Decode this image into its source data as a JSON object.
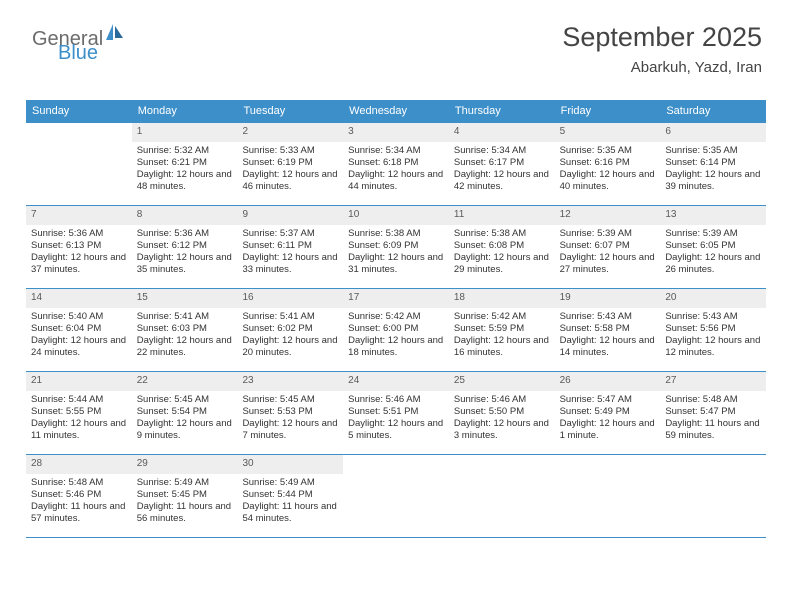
{
  "brand": {
    "part1": "General",
    "part2": "Blue"
  },
  "title": "September 2025",
  "location": "Abarkuh, Yazd, Iran",
  "colors": {
    "header_bg": "#3d8fc9",
    "header_fg": "#ffffff",
    "daynum_bg": "#eeeeee",
    "rule": "#3d8fc9",
    "text": "#333333"
  },
  "daysOfWeek": [
    "Sunday",
    "Monday",
    "Tuesday",
    "Wednesday",
    "Thursday",
    "Friday",
    "Saturday"
  ],
  "weeks": [
    [
      {
        "n": "",
        "sr": "",
        "ss": "",
        "dl": ""
      },
      {
        "n": "1",
        "sr": "Sunrise: 5:32 AM",
        "ss": "Sunset: 6:21 PM",
        "dl": "Daylight: 12 hours and 48 minutes."
      },
      {
        "n": "2",
        "sr": "Sunrise: 5:33 AM",
        "ss": "Sunset: 6:19 PM",
        "dl": "Daylight: 12 hours and 46 minutes."
      },
      {
        "n": "3",
        "sr": "Sunrise: 5:34 AM",
        "ss": "Sunset: 6:18 PM",
        "dl": "Daylight: 12 hours and 44 minutes."
      },
      {
        "n": "4",
        "sr": "Sunrise: 5:34 AM",
        "ss": "Sunset: 6:17 PM",
        "dl": "Daylight: 12 hours and 42 minutes."
      },
      {
        "n": "5",
        "sr": "Sunrise: 5:35 AM",
        "ss": "Sunset: 6:16 PM",
        "dl": "Daylight: 12 hours and 40 minutes."
      },
      {
        "n": "6",
        "sr": "Sunrise: 5:35 AM",
        "ss": "Sunset: 6:14 PM",
        "dl": "Daylight: 12 hours and 39 minutes."
      }
    ],
    [
      {
        "n": "7",
        "sr": "Sunrise: 5:36 AM",
        "ss": "Sunset: 6:13 PM",
        "dl": "Daylight: 12 hours and 37 minutes."
      },
      {
        "n": "8",
        "sr": "Sunrise: 5:36 AM",
        "ss": "Sunset: 6:12 PM",
        "dl": "Daylight: 12 hours and 35 minutes."
      },
      {
        "n": "9",
        "sr": "Sunrise: 5:37 AM",
        "ss": "Sunset: 6:11 PM",
        "dl": "Daylight: 12 hours and 33 minutes."
      },
      {
        "n": "10",
        "sr": "Sunrise: 5:38 AM",
        "ss": "Sunset: 6:09 PM",
        "dl": "Daylight: 12 hours and 31 minutes."
      },
      {
        "n": "11",
        "sr": "Sunrise: 5:38 AM",
        "ss": "Sunset: 6:08 PM",
        "dl": "Daylight: 12 hours and 29 minutes."
      },
      {
        "n": "12",
        "sr": "Sunrise: 5:39 AM",
        "ss": "Sunset: 6:07 PM",
        "dl": "Daylight: 12 hours and 27 minutes."
      },
      {
        "n": "13",
        "sr": "Sunrise: 5:39 AM",
        "ss": "Sunset: 6:05 PM",
        "dl": "Daylight: 12 hours and 26 minutes."
      }
    ],
    [
      {
        "n": "14",
        "sr": "Sunrise: 5:40 AM",
        "ss": "Sunset: 6:04 PM",
        "dl": "Daylight: 12 hours and 24 minutes."
      },
      {
        "n": "15",
        "sr": "Sunrise: 5:41 AM",
        "ss": "Sunset: 6:03 PM",
        "dl": "Daylight: 12 hours and 22 minutes."
      },
      {
        "n": "16",
        "sr": "Sunrise: 5:41 AM",
        "ss": "Sunset: 6:02 PM",
        "dl": "Daylight: 12 hours and 20 minutes."
      },
      {
        "n": "17",
        "sr": "Sunrise: 5:42 AM",
        "ss": "Sunset: 6:00 PM",
        "dl": "Daylight: 12 hours and 18 minutes."
      },
      {
        "n": "18",
        "sr": "Sunrise: 5:42 AM",
        "ss": "Sunset: 5:59 PM",
        "dl": "Daylight: 12 hours and 16 minutes."
      },
      {
        "n": "19",
        "sr": "Sunrise: 5:43 AM",
        "ss": "Sunset: 5:58 PM",
        "dl": "Daylight: 12 hours and 14 minutes."
      },
      {
        "n": "20",
        "sr": "Sunrise: 5:43 AM",
        "ss": "Sunset: 5:56 PM",
        "dl": "Daylight: 12 hours and 12 minutes."
      }
    ],
    [
      {
        "n": "21",
        "sr": "Sunrise: 5:44 AM",
        "ss": "Sunset: 5:55 PM",
        "dl": "Daylight: 12 hours and 11 minutes."
      },
      {
        "n": "22",
        "sr": "Sunrise: 5:45 AM",
        "ss": "Sunset: 5:54 PM",
        "dl": "Daylight: 12 hours and 9 minutes."
      },
      {
        "n": "23",
        "sr": "Sunrise: 5:45 AM",
        "ss": "Sunset: 5:53 PM",
        "dl": "Daylight: 12 hours and 7 minutes."
      },
      {
        "n": "24",
        "sr": "Sunrise: 5:46 AM",
        "ss": "Sunset: 5:51 PM",
        "dl": "Daylight: 12 hours and 5 minutes."
      },
      {
        "n": "25",
        "sr": "Sunrise: 5:46 AM",
        "ss": "Sunset: 5:50 PM",
        "dl": "Daylight: 12 hours and 3 minutes."
      },
      {
        "n": "26",
        "sr": "Sunrise: 5:47 AM",
        "ss": "Sunset: 5:49 PM",
        "dl": "Daylight: 12 hours and 1 minute."
      },
      {
        "n": "27",
        "sr": "Sunrise: 5:48 AM",
        "ss": "Sunset: 5:47 PM",
        "dl": "Daylight: 11 hours and 59 minutes."
      }
    ],
    [
      {
        "n": "28",
        "sr": "Sunrise: 5:48 AM",
        "ss": "Sunset: 5:46 PM",
        "dl": "Daylight: 11 hours and 57 minutes."
      },
      {
        "n": "29",
        "sr": "Sunrise: 5:49 AM",
        "ss": "Sunset: 5:45 PM",
        "dl": "Daylight: 11 hours and 56 minutes."
      },
      {
        "n": "30",
        "sr": "Sunrise: 5:49 AM",
        "ss": "Sunset: 5:44 PM",
        "dl": "Daylight: 11 hours and 54 minutes."
      },
      {
        "n": "",
        "sr": "",
        "ss": "",
        "dl": ""
      },
      {
        "n": "",
        "sr": "",
        "ss": "",
        "dl": ""
      },
      {
        "n": "",
        "sr": "",
        "ss": "",
        "dl": ""
      },
      {
        "n": "",
        "sr": "",
        "ss": "",
        "dl": ""
      }
    ]
  ]
}
